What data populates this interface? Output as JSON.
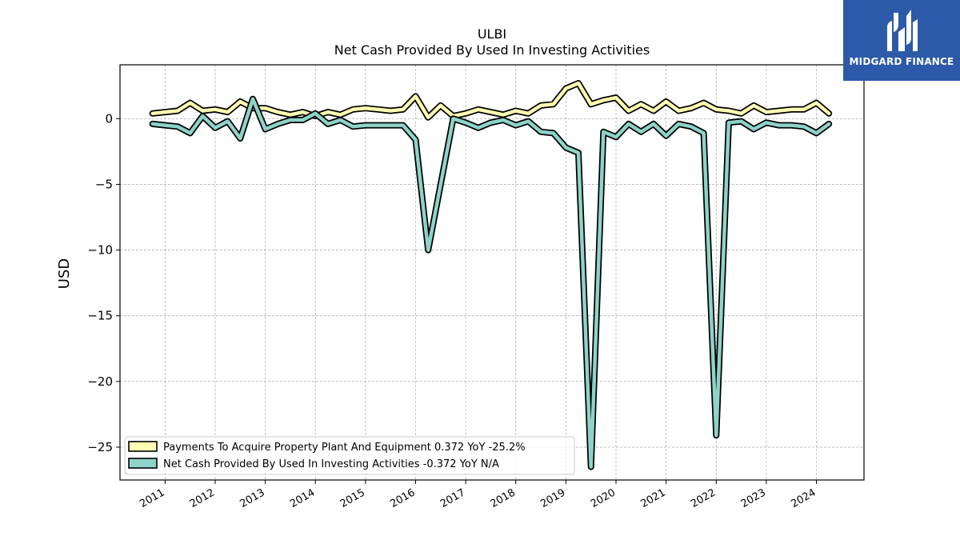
{
  "chart_data": {
    "type": "line",
    "title": "ULBI",
    "subtitle": "Net Cash Provided By Used In Investing Activities",
    "ylabel": "USD",
    "xlabel": "",
    "ylim": [
      -27.5,
      4.1
    ],
    "xlim": [
      2010.1,
      2024.95
    ],
    "yticks": [
      0,
      -5,
      -10,
      -15,
      -20,
      -25
    ],
    "ytick_labels": [
      "0",
      "−5",
      "−10",
      "−15",
      "−20",
      "−25"
    ],
    "xticks": [
      2011,
      2012,
      2013,
      2014,
      2015,
      2016,
      2017,
      2018,
      2019,
      2020,
      2021,
      2022,
      2023,
      2024
    ],
    "xtick_labels": [
      "2011",
      "2012",
      "2013",
      "2014",
      "2015",
      "2016",
      "2017",
      "2018",
      "2019",
      "2020",
      "2021",
      "2022",
      "2023",
      "2024"
    ],
    "grid": true,
    "legend_position": "lower-left",
    "series": [
      {
        "name": "Payments To Acquire Property Plant And Equipment",
        "legend": "Payments To Acquire Property Plant And Equipment  0.372 YoY -25.2%",
        "color": "#ffffb3",
        "x": [
          2010.75,
          2011.0,
          2011.25,
          2011.5,
          2011.75,
          2012.0,
          2012.25,
          2012.5,
          2012.75,
          2013.0,
          2013.25,
          2013.5,
          2013.75,
          2014.0,
          2014.25,
          2014.5,
          2014.75,
          2015.0,
          2015.25,
          2015.5,
          2015.75,
          2016.0,
          2016.25,
          2016.5,
          2016.75,
          2017.0,
          2017.25,
          2017.5,
          2017.75,
          2018.0,
          2018.25,
          2018.5,
          2018.75,
          2019.0,
          2019.25,
          2019.5,
          2019.75,
          2020.0,
          2020.25,
          2020.5,
          2020.75,
          2021.0,
          2021.25,
          2021.5,
          2021.75,
          2022.0,
          2022.25,
          2022.5,
          2022.75,
          2023.0,
          2023.25,
          2023.5,
          2023.75,
          2024.0,
          2024.25
        ],
        "values": [
          0.4,
          0.5,
          0.6,
          1.2,
          0.6,
          0.7,
          0.5,
          1.3,
          0.8,
          0.8,
          0.5,
          0.3,
          0.5,
          0.2,
          0.5,
          0.3,
          0.7,
          0.8,
          0.7,
          0.6,
          0.7,
          1.7,
          0.1,
          1.0,
          0.2,
          0.4,
          0.7,
          0.5,
          0.3,
          0.6,
          0.4,
          1.0,
          1.1,
          2.3,
          2.7,
          1.1,
          1.4,
          1.6,
          0.6,
          1.1,
          0.6,
          1.3,
          0.6,
          0.8,
          1.2,
          0.7,
          0.6,
          0.4,
          1.0,
          0.5,
          0.6,
          0.7,
          0.7,
          1.2,
          0.4
        ]
      },
      {
        "name": "Net Cash Provided By Used In Investing Activities",
        "legend": "Net Cash Provided By Used In Investing Activities  -0.372 YoY N/A",
        "color": "#8dd3c7",
        "x": [
          2010.75,
          2011.0,
          2011.25,
          2011.5,
          2011.75,
          2012.0,
          2012.25,
          2012.5,
          2012.75,
          2013.0,
          2013.25,
          2013.5,
          2013.75,
          2014.0,
          2014.25,
          2014.5,
          2014.75,
          2015.0,
          2015.25,
          2015.5,
          2015.75,
          2016.0,
          2016.25,
          2016.5,
          2016.75,
          2017.0,
          2017.25,
          2017.5,
          2017.75,
          2018.0,
          2018.25,
          2018.5,
          2018.75,
          2019.0,
          2019.25,
          2019.5,
          2019.75,
          2020.0,
          2020.25,
          2020.5,
          2020.75,
          2021.0,
          2021.25,
          2021.5,
          2021.75,
          2022.0,
          2022.25,
          2022.5,
          2022.75,
          2023.0,
          2023.25,
          2023.5,
          2023.75,
          2024.0,
          2024.25
        ],
        "values": [
          -0.4,
          -0.5,
          -0.6,
          -1.1,
          0.2,
          -0.7,
          -0.2,
          -1.5,
          1.5,
          -0.8,
          -0.4,
          -0.1,
          -0.1,
          0.4,
          -0.4,
          -0.1,
          -0.6,
          -0.5,
          -0.5,
          -0.5,
          -0.5,
          -1.6,
          -10.0,
          -5.0,
          0.0,
          -0.3,
          -0.7,
          -0.3,
          -0.1,
          -0.5,
          -0.2,
          -1.0,
          -1.1,
          -2.2,
          -2.6,
          -26.5,
          -1.0,
          -1.4,
          -0.4,
          -1.0,
          -0.4,
          -1.3,
          -0.4,
          -0.6,
          -1.1,
          -24.1,
          -0.3,
          -0.2,
          -0.8,
          -0.3,
          -0.5,
          -0.5,
          -0.6,
          -1.1,
          -0.4
        ]
      }
    ]
  },
  "logo": {
    "brand": "MIDGARD FINANCE",
    "color": "#2d5aa8"
  }
}
